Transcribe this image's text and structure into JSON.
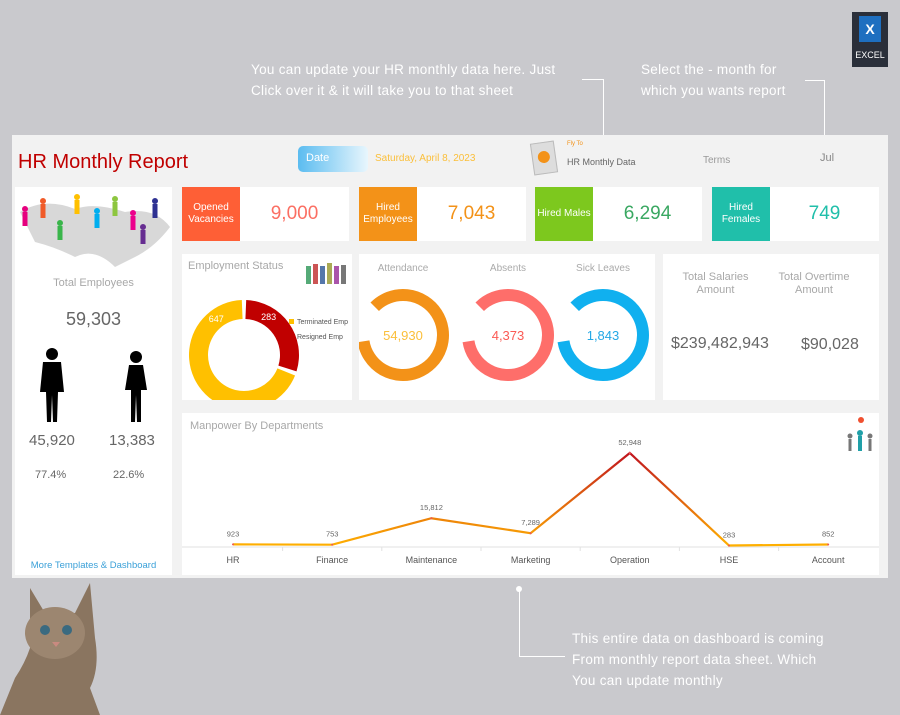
{
  "annotations": {
    "top_left": [
      "You can update your HR monthly data here. Just",
      "Click over it & it will take you to that sheet"
    ],
    "top_right": [
      "Select the - month for",
      "which you wants report"
    ],
    "bottom": [
      "This entire data on dashboard is coming",
      "From monthly report data sheet. Which",
      "You can update monthly"
    ]
  },
  "excel_badge": {
    "label": "EXCEL",
    "color": "#1e6fc0"
  },
  "header": {
    "title": "HR Monthly Report",
    "date_label": "Date",
    "date_value": "Saturday, April 8, 2023",
    "fly_to": "Fly To",
    "link": "HR Monthly Data",
    "terms_label": "Terms",
    "month": "Jul"
  },
  "sidebar": {
    "total_label": "Total Employees",
    "total": "59,303",
    "male": "45,920",
    "female": "13,383",
    "male_pct": "77.4%",
    "female_pct": "22.6%",
    "more_link": "More Templates & Dashboard"
  },
  "kpis": [
    {
      "label": "Opened Vacancies",
      "value": "9,000",
      "color": "#fe5f36",
      "text_color": "#fb6f63"
    },
    {
      "label": "Hired Employees",
      "value": "7,043",
      "color": "#f39218",
      "text_color": "#f39218"
    },
    {
      "label": "Hired Males",
      "value": "6,294",
      "color": "#7dc81e",
      "text_color": "#3aa862"
    },
    {
      "label": "Hired Females",
      "value": "749",
      "color": "#20bfaa",
      "text_color": "#20bfaa"
    }
  ],
  "employment_status": {
    "title": "Employment Status",
    "chart_data": {
      "type": "pie",
      "slices": [
        {
          "name": "Terminated Emp",
          "value": 647,
          "color": "#ffc000"
        },
        {
          "name": "Resigned Emp",
          "value": 283,
          "color": "#c00000"
        }
      ]
    }
  },
  "attendance": [
    {
      "label": "Attendance",
      "value": "54,930",
      "color": "#f39218",
      "text_color": "#fbbf3a"
    },
    {
      "label": "Absents",
      "value": "4,373",
      "color": "#fe6e6a",
      "text_color": "#fb5a54"
    },
    {
      "label": "Sick Leaves",
      "value": "1,843",
      "color": "#10b0ef",
      "text_color": "#23a8e6"
    }
  ],
  "salaries": {
    "salaries_label": "Total Salaries Amount",
    "salaries": "$239,482,943",
    "overtime_label": "Total Overtime Amount",
    "overtime": "$90,028"
  },
  "manpower": {
    "title": "Manpower By Departments",
    "chart_data": {
      "type": "line",
      "categories": [
        "HR",
        "Finance",
        "Maintenance",
        "Marketing",
        "Operation",
        "HSE",
        "Account"
      ],
      "values": [
        923,
        753,
        15812,
        7289,
        52948,
        283,
        852
      ],
      "labels": [
        "923",
        "753",
        "15,812",
        "7,289",
        "52,948",
        "283",
        "852"
      ],
      "ylim": [
        0,
        52948
      ],
      "grid": false
    }
  }
}
